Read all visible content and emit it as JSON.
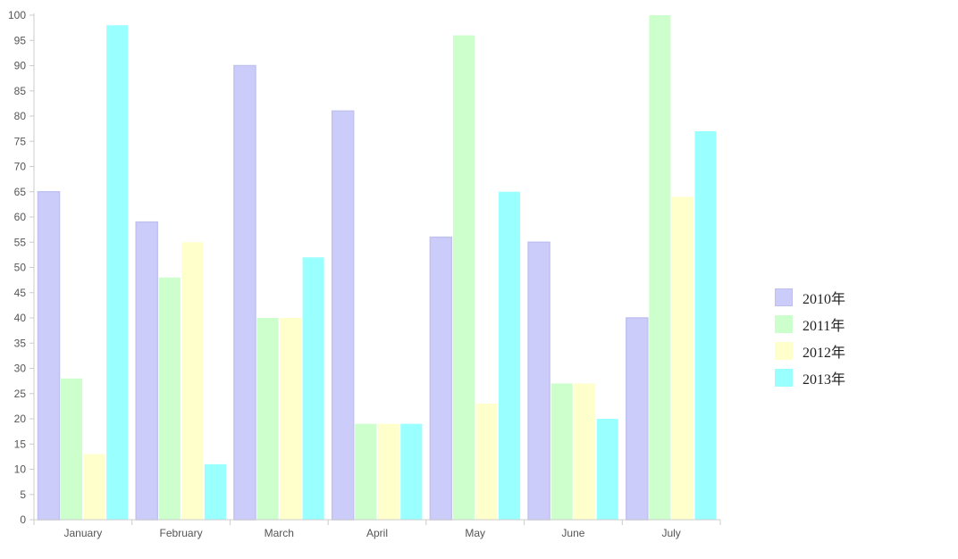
{
  "chart_data": {
    "type": "bar",
    "categories": [
      "January",
      "February",
      "March",
      "April",
      "May",
      "June",
      "July"
    ],
    "series": [
      {
        "name": "2010年",
        "color": "#ccccfa",
        "values": [
          65,
          59,
          90,
          81,
          56,
          55,
          40
        ]
      },
      {
        "name": "2011年",
        "color": "#ccffcc",
        "values": [
          28,
          48,
          40,
          19,
          96,
          27,
          100
        ]
      },
      {
        "name": "2012年",
        "color": "#ffffcc",
        "values": [
          13,
          55,
          40,
          19,
          23,
          27,
          64
        ]
      },
      {
        "name": "2013年",
        "color": "#99ffff",
        "values": [
          98,
          11,
          52,
          19,
          65,
          20,
          77
        ]
      }
    ],
    "yticks": [
      "0",
      "5",
      "10",
      "15",
      "20",
      "25",
      "30",
      "35",
      "40",
      "45",
      "50",
      "55",
      "60",
      "65",
      "70",
      "75",
      "80",
      "85",
      "90",
      "95",
      "100"
    ],
    "ylim": [
      0,
      100
    ],
    "grid": false,
    "legend_position": "right"
  }
}
